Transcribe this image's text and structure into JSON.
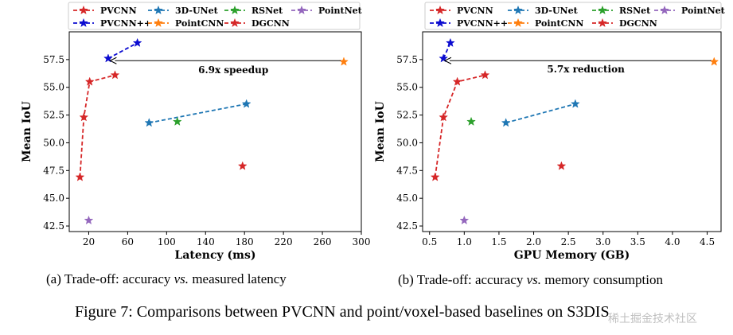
{
  "chart_data": [
    {
      "type": "scatter",
      "xlabel": "Latency (ms)",
      "ylabel": "Mean IoU",
      "xlim": [
        0,
        300
      ],
      "ylim": [
        42,
        60
      ],
      "xticks": [
        20,
        60,
        100,
        140,
        180,
        220,
        260,
        300
      ],
      "yticks": [
        42.5,
        45.0,
        47.5,
        50.0,
        52.5,
        55.0,
        57.5
      ],
      "legend_position": "top",
      "series": [
        {
          "name": "PVCNN",
          "color": "#d62728",
          "line": true,
          "points": [
            [
              11,
              46.9
            ],
            [
              15,
              52.3
            ],
            [
              21,
              55.5
            ],
            [
              47,
              56.1
            ]
          ]
        },
        {
          "name": "PVCNN++",
          "color": "#0b0bd0",
          "line": true,
          "points": [
            [
              40,
              57.6
            ],
            [
              70,
              59.0
            ]
          ]
        },
        {
          "name": "3D-UNet",
          "color": "#1f77b4",
          "line": true,
          "points": [
            [
              82,
              51.8
            ],
            [
              182,
              53.5
            ]
          ]
        },
        {
          "name": "PointCNN",
          "color": "#ff7f0e",
          "line": false,
          "points": [
            [
              282,
              57.3
            ]
          ]
        },
        {
          "name": "RSNet",
          "color": "#2ca02c",
          "line": false,
          "points": [
            [
              111,
              51.9
            ]
          ]
        },
        {
          "name": "DGCNN",
          "color": "#d62728",
          "line": false,
          "points": [
            [
              178,
              47.9
            ]
          ]
        },
        {
          "name": "PointNet",
          "color": "#9467bd",
          "line": false,
          "points": [
            [
              20,
              43.0
            ]
          ]
        }
      ],
      "annotation": {
        "text": "6.9x speedup",
        "from": [
          282,
          57.4
        ],
        "to": [
          42,
          57.4
        ]
      }
    },
    {
      "type": "scatter",
      "xlabel": "GPU Memory (GB)",
      "ylabel": "Mean IoU",
      "xlim": [
        0.4,
        4.7
      ],
      "ylim": [
        42,
        60
      ],
      "xticks": [
        0.5,
        1.0,
        1.5,
        2.0,
        2.5,
        3.0,
        3.5,
        4.0,
        4.5
      ],
      "yticks": [
        42.5,
        45.0,
        47.5,
        50.0,
        52.5,
        55.0,
        57.5
      ],
      "legend_position": "top",
      "series": [
        {
          "name": "PVCNN",
          "color": "#d62728",
          "line": true,
          "points": [
            [
              0.58,
              46.9
            ],
            [
              0.7,
              52.3
            ],
            [
              0.9,
              55.5
            ],
            [
              1.3,
              56.1
            ]
          ]
        },
        {
          "name": "PVCNN++",
          "color": "#0b0bd0",
          "line": true,
          "points": [
            [
              0.7,
              57.6
            ],
            [
              0.8,
              59.0
            ]
          ]
        },
        {
          "name": "3D-UNet",
          "color": "#1f77b4",
          "line": true,
          "points": [
            [
              1.6,
              51.8
            ],
            [
              2.6,
              53.5
            ]
          ]
        },
        {
          "name": "PointCNN",
          "color": "#ff7f0e",
          "line": false,
          "points": [
            [
              4.6,
              57.3
            ]
          ]
        },
        {
          "name": "RSNet",
          "color": "#2ca02c",
          "line": false,
          "points": [
            [
              1.1,
              51.9
            ]
          ]
        },
        {
          "name": "DGCNN",
          "color": "#d62728",
          "line": false,
          "points": [
            [
              2.4,
              47.9
            ]
          ]
        },
        {
          "name": "PointNet",
          "color": "#9467bd",
          "line": false,
          "points": [
            [
              1.0,
              43.0
            ]
          ]
        }
      ],
      "annotation": {
        "text": "5.7x reduction",
        "from": [
          4.6,
          57.4
        ],
        "to": [
          0.72,
          57.4
        ]
      }
    }
  ],
  "captions": {
    "sub_a": "(a) Trade-off: accuracy vs. measured latency",
    "sub_b": "(b) Trade-off: accuracy vs. memory consumption",
    "figure": "Figure 7: Comparisons between PVCNN and point/voxel-based baselines on S3DIS"
  },
  "watermark": "稀土掘金技术社区"
}
